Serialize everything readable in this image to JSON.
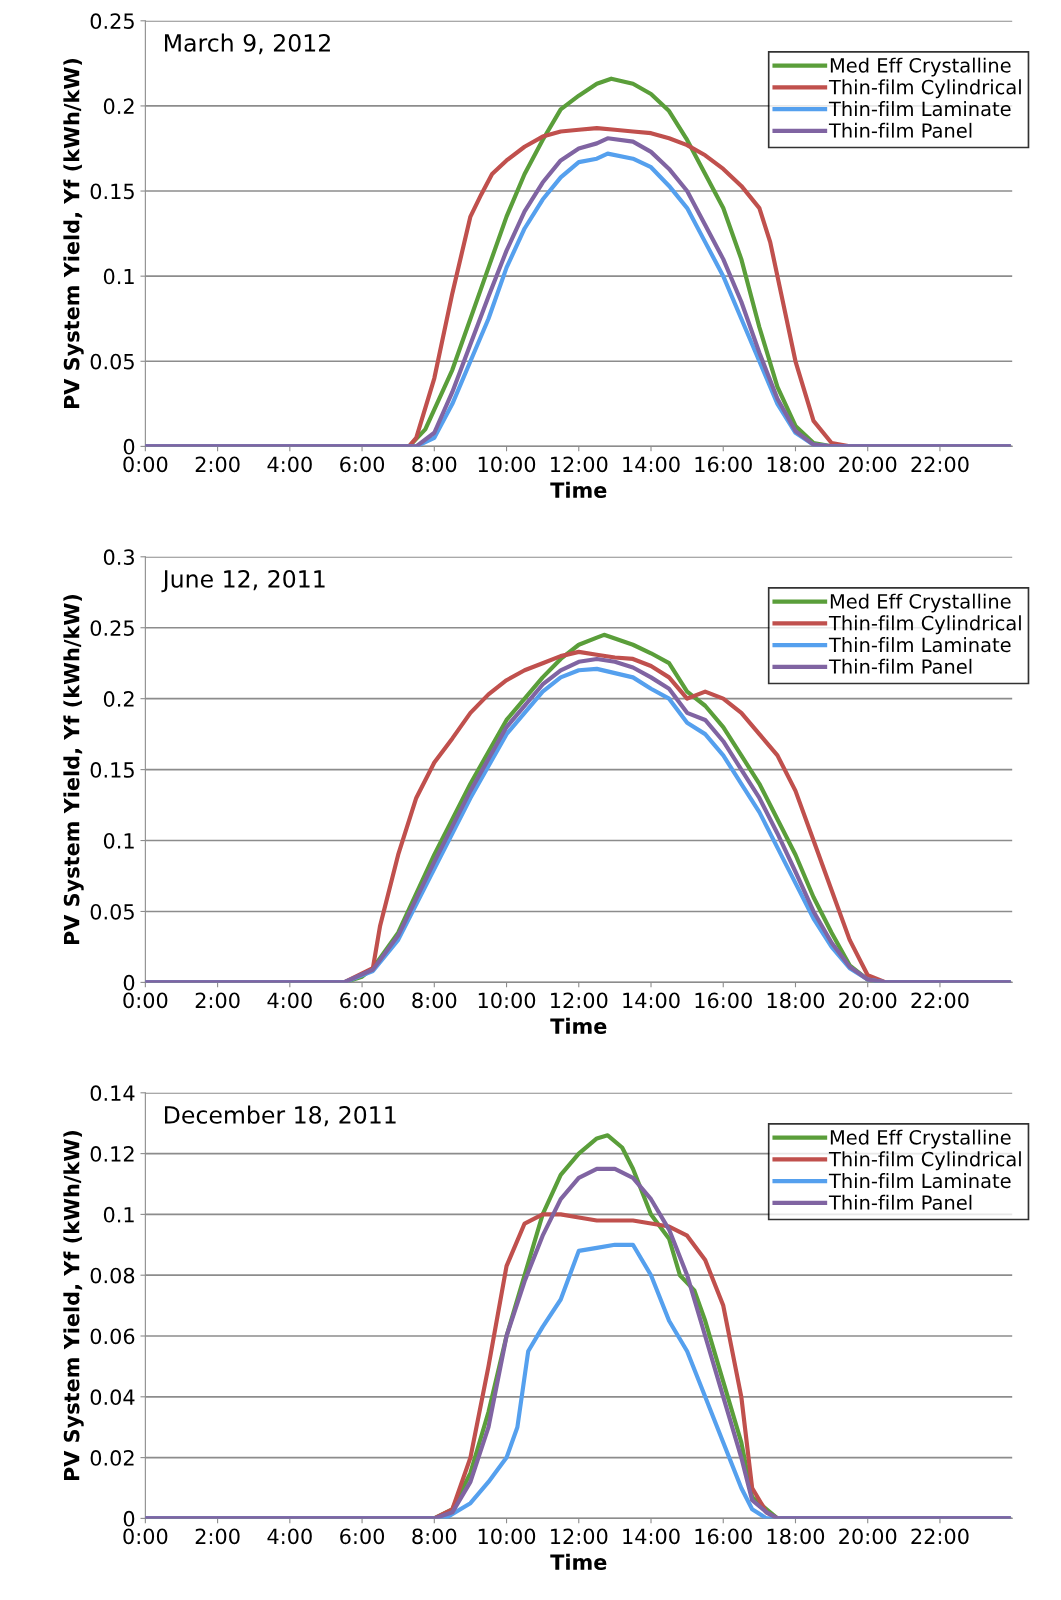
{
  "chart_data": [
    {
      "type": "line",
      "xlabel": "Time",
      "ylabel": "PV System Yield, Yf (kWh/kW)",
      "annotations": [
        "March 9, 2012"
      ],
      "xlim": [
        0,
        24
      ],
      "ylim": [
        0,
        0.25
      ],
      "grid": "y",
      "legend": "top right",
      "line_style": "solid",
      "marker": "none",
      "xticks": [
        {
          "value": 0,
          "label": "0:00"
        },
        {
          "value": 2,
          "label": "2:00"
        },
        {
          "value": 4,
          "label": "4:00"
        },
        {
          "value": 6,
          "label": "6:00"
        },
        {
          "value": 8,
          "label": "8:00"
        },
        {
          "value": 10,
          "label": "10:00"
        },
        {
          "value": 12,
          "label": "12:00"
        },
        {
          "value": 14,
          "label": "14:00"
        },
        {
          "value": 16,
          "label": "16:00"
        },
        {
          "value": 18,
          "label": "18:00"
        },
        {
          "value": 20,
          "label": "20:00"
        },
        {
          "value": 22,
          "label": "22:00"
        }
      ],
      "yticks": [
        0,
        0.05,
        0.1,
        0.15,
        0.2,
        0.25
      ],
      "series": [
        {
          "name": "Med Eff Crystalline",
          "color": "#5a9e3a",
          "x": [
            0,
            7.3,
            7.75,
            8.5,
            9,
            9.5,
            10,
            10.5,
            11,
            11.5,
            12,
            12.5,
            12.9,
            13.5,
            14,
            14.5,
            15,
            15.5,
            16,
            16.5,
            17,
            17.5,
            18,
            18.5,
            19,
            23.9
          ],
          "values": [
            0,
            0,
            0.01,
            0.045,
            0.075,
            0.105,
            0.135,
            0.16,
            0.18,
            0.198,
            0.206,
            0.213,
            0.216,
            0.213,
            0.207,
            0.197,
            0.18,
            0.16,
            0.14,
            0.11,
            0.07,
            0.035,
            0.012,
            0.002,
            0,
            0
          ]
        },
        {
          "name": "Thin-film Cylindrical",
          "color": "#c0504d",
          "x": [
            0,
            7.3,
            7.5,
            8,
            8.5,
            9,
            9.3,
            9.6,
            10,
            10.5,
            11,
            11.5,
            12,
            12.5,
            13,
            13.5,
            14,
            14.5,
            15,
            15.5,
            16,
            16.5,
            17,
            17.3,
            17.6,
            18,
            18.5,
            19,
            19.5,
            23.9
          ],
          "values": [
            0,
            0,
            0.005,
            0.04,
            0.09,
            0.135,
            0.148,
            0.16,
            0.168,
            0.176,
            0.182,
            0.185,
            0.186,
            0.187,
            0.186,
            0.185,
            0.184,
            0.181,
            0.177,
            0.171,
            0.163,
            0.153,
            0.14,
            0.12,
            0.09,
            0.05,
            0.015,
            0.002,
            0,
            0
          ]
        },
        {
          "name": "Thin-film Laminate",
          "color": "#55a0ee",
          "x": [
            0,
            7.5,
            8,
            8.5,
            9,
            9.5,
            10,
            10.5,
            11,
            11.5,
            12,
            12.5,
            12.8,
            13.5,
            14,
            14.5,
            15,
            15.5,
            16,
            16.5,
            17,
            17.5,
            18,
            18.5,
            19,
            23.9
          ],
          "values": [
            0,
            0,
            0.005,
            0.025,
            0.05,
            0.075,
            0.105,
            0.128,
            0.145,
            0.158,
            0.167,
            0.169,
            0.172,
            0.169,
            0.164,
            0.153,
            0.14,
            0.12,
            0.1,
            0.075,
            0.05,
            0.025,
            0.008,
            0.001,
            0,
            0
          ]
        },
        {
          "name": "Thin-film Panel",
          "color": "#8064a2",
          "x": [
            0,
            7.5,
            8,
            8.5,
            9,
            9.5,
            10,
            10.5,
            11,
            11.5,
            12,
            12.5,
            12.8,
            13.5,
            14,
            14.5,
            15,
            15.5,
            16,
            16.5,
            17,
            17.5,
            18,
            18.5,
            19,
            23.9
          ],
          "values": [
            0,
            0,
            0.008,
            0.032,
            0.06,
            0.088,
            0.115,
            0.138,
            0.155,
            0.168,
            0.175,
            0.178,
            0.181,
            0.179,
            0.173,
            0.163,
            0.15,
            0.13,
            0.11,
            0.085,
            0.055,
            0.028,
            0.009,
            0.001,
            0,
            0
          ]
        }
      ]
    },
    {
      "type": "line",
      "xlabel": "Time",
      "ylabel": "PV System Yield, Yf (kWh/kW)",
      "annotations": [
        "June 12, 2011"
      ],
      "xlim": [
        0,
        24
      ],
      "ylim": [
        0,
        0.3
      ],
      "grid": "y",
      "legend": "top right",
      "line_style": "solid",
      "marker": "none",
      "xticks": [
        {
          "value": 0,
          "label": "0:00"
        },
        {
          "value": 2,
          "label": "2:00"
        },
        {
          "value": 4,
          "label": "4:00"
        },
        {
          "value": 6,
          "label": "6:00"
        },
        {
          "value": 8,
          "label": "8:00"
        },
        {
          "value": 10,
          "label": "10:00"
        },
        {
          "value": 12,
          "label": "12:00"
        },
        {
          "value": 14,
          "label": "14:00"
        },
        {
          "value": 16,
          "label": "16:00"
        },
        {
          "value": 18,
          "label": "18:00"
        },
        {
          "value": 20,
          "label": "20:00"
        },
        {
          "value": 22,
          "label": "22:00"
        }
      ],
      "yticks": [
        0,
        0.05,
        0.1,
        0.15,
        0.2,
        0.25,
        0.3
      ],
      "series": [
        {
          "name": "Med Eff Crystalline",
          "color": "#5a9e3a",
          "x": [
            0,
            5.5,
            6,
            6.3,
            7,
            8,
            9,
            10,
            11,
            11.5,
            12,
            12.5,
            12.7,
            13.5,
            14,
            14.5,
            15,
            15.5,
            16,
            16.5,
            17,
            17.5,
            18,
            18.5,
            19,
            19.5,
            20,
            20.5,
            23.9
          ],
          "values": [
            0,
            0,
            0.004,
            0.01,
            0.035,
            0.09,
            0.14,
            0.185,
            0.215,
            0.228,
            0.238,
            0.243,
            0.245,
            0.238,
            0.232,
            0.225,
            0.205,
            0.195,
            0.18,
            0.16,
            0.14,
            0.115,
            0.09,
            0.06,
            0.035,
            0.012,
            0.002,
            0,
            0
          ]
        },
        {
          "name": "Thin-film Cylindrical",
          "color": "#c0504d",
          "x": [
            0,
            5.5,
            6.3,
            6.5,
            7,
            7.5,
            8,
            8.5,
            9,
            9.5,
            10,
            10.5,
            11,
            11.5,
            12,
            12.5,
            13,
            13.5,
            14,
            14.5,
            15,
            15.5,
            16,
            16.5,
            17,
            17.5,
            18,
            18.5,
            19,
            19.5,
            20,
            20.5,
            23.9
          ],
          "values": [
            0,
            0,
            0.01,
            0.04,
            0.09,
            0.13,
            0.155,
            0.172,
            0.19,
            0.203,
            0.213,
            0.22,
            0.225,
            0.23,
            0.233,
            0.231,
            0.229,
            0.228,
            0.223,
            0.215,
            0.2,
            0.205,
            0.2,
            0.19,
            0.175,
            0.16,
            0.135,
            0.1,
            0.065,
            0.03,
            0.005,
            0,
            0
          ]
        },
        {
          "name": "Thin-film Laminate",
          "color": "#55a0ee",
          "x": [
            0,
            5.5,
            6.3,
            7,
            8,
            9,
            10,
            11,
            11.5,
            12,
            12.5,
            13,
            13.5,
            14,
            14.5,
            15,
            15.5,
            16,
            16.5,
            17,
            17.5,
            18,
            18.5,
            19,
            19.5,
            20,
            20.5,
            23.9
          ],
          "values": [
            0,
            0,
            0.008,
            0.03,
            0.08,
            0.13,
            0.175,
            0.205,
            0.215,
            0.22,
            0.221,
            0.218,
            0.215,
            0.207,
            0.2,
            0.183,
            0.175,
            0.16,
            0.14,
            0.12,
            0.095,
            0.07,
            0.045,
            0.025,
            0.01,
            0.002,
            0,
            0
          ]
        },
        {
          "name": "Thin-film Panel",
          "color": "#8064a2",
          "x": [
            0,
            5.5,
            6.3,
            7,
            8,
            9,
            10,
            11,
            11.5,
            12,
            12.5,
            13,
            13.5,
            14,
            14.5,
            15,
            15.5,
            16,
            16.5,
            17,
            17.5,
            18,
            18.5,
            19,
            19.5,
            20,
            20.5,
            23.9
          ],
          "values": [
            0,
            0,
            0.009,
            0.033,
            0.085,
            0.135,
            0.18,
            0.21,
            0.22,
            0.226,
            0.228,
            0.226,
            0.222,
            0.215,
            0.207,
            0.19,
            0.185,
            0.17,
            0.15,
            0.13,
            0.105,
            0.078,
            0.05,
            0.028,
            0.011,
            0.002,
            0,
            0
          ]
        }
      ]
    },
    {
      "type": "line",
      "xlabel": "Time",
      "ylabel": "PV System Yield, Yf (kWh/kW)",
      "annotations": [
        "December 18, 2011"
      ],
      "xlim": [
        0,
        24
      ],
      "ylim": [
        0,
        0.14
      ],
      "grid": "y",
      "legend": "top right",
      "line_style": "solid",
      "marker": "none",
      "xticks": [
        {
          "value": 0,
          "label": "0:00"
        },
        {
          "value": 2,
          "label": "2:00"
        },
        {
          "value": 4,
          "label": "4:00"
        },
        {
          "value": 6,
          "label": "6:00"
        },
        {
          "value": 8,
          "label": "8:00"
        },
        {
          "value": 10,
          "label": "10:00"
        },
        {
          "value": 12,
          "label": "12:00"
        },
        {
          "value": 14,
          "label": "14:00"
        },
        {
          "value": 16,
          "label": "16:00"
        },
        {
          "value": 18,
          "label": "18:00"
        },
        {
          "value": 20,
          "label": "20:00"
        },
        {
          "value": 22,
          "label": "22:00"
        }
      ],
      "yticks": [
        0,
        0.02,
        0.04,
        0.06,
        0.08,
        0.1,
        0.12,
        0.14
      ],
      "series": [
        {
          "name": "Med Eff Crystalline",
          "color": "#5a9e3a",
          "x": [
            0,
            8,
            8.5,
            9,
            9.5,
            10,
            10.5,
            11,
            11.5,
            12,
            12.5,
            12.8,
            13.2,
            13.5,
            14,
            14.5,
            14.8,
            15.2,
            15.5,
            16,
            16.5,
            16.8,
            17.2,
            17.5,
            23.9
          ],
          "values": [
            0,
            0,
            0.003,
            0.015,
            0.035,
            0.06,
            0.08,
            0.1,
            0.113,
            0.12,
            0.125,
            0.126,
            0.122,
            0.115,
            0.1,
            0.092,
            0.08,
            0.075,
            0.065,
            0.045,
            0.025,
            0.007,
            0.003,
            0,
            0
          ]
        },
        {
          "name": "Thin-film Cylindrical",
          "color": "#c0504d",
          "x": [
            0,
            8,
            8.5,
            9,
            9.5,
            10,
            10.5,
            11,
            11.5,
            12,
            12.5,
            13,
            13.5,
            14,
            14.5,
            15,
            15.5,
            16,
            16.5,
            16.8,
            17.2,
            17.5,
            23.9
          ],
          "values": [
            0,
            0,
            0.003,
            0.02,
            0.05,
            0.083,
            0.097,
            0.1,
            0.1,
            0.099,
            0.098,
            0.098,
            0.098,
            0.097,
            0.096,
            0.093,
            0.085,
            0.07,
            0.04,
            0.01,
            0.002,
            0,
            0
          ]
        },
        {
          "name": "Thin-film Laminate",
          "color": "#55a0ee",
          "x": [
            0,
            8.3,
            9,
            9.5,
            10,
            10.3,
            10.6,
            11,
            11.5,
            12,
            12.5,
            13,
            13.5,
            14,
            14.5,
            15,
            15.5,
            16,
            16.5,
            16.8,
            17.2,
            23.9
          ],
          "values": [
            0,
            0,
            0.005,
            0.012,
            0.02,
            0.03,
            0.055,
            0.063,
            0.072,
            0.088,
            0.089,
            0.09,
            0.09,
            0.08,
            0.065,
            0.055,
            0.04,
            0.025,
            0.01,
            0.003,
            0,
            0
          ]
        },
        {
          "name": "Thin-film Panel",
          "color": "#8064a2",
          "x": [
            0,
            8,
            8.5,
            9,
            9.5,
            10,
            10.5,
            11,
            11.5,
            12,
            12.5,
            13,
            13.5,
            14,
            14.5,
            15,
            15.5,
            16,
            16.5,
            16.8,
            17.2,
            17.5,
            23.9
          ],
          "values": [
            0,
            0,
            0.002,
            0.012,
            0.03,
            0.06,
            0.078,
            0.093,
            0.105,
            0.112,
            0.115,
            0.115,
            0.112,
            0.105,
            0.095,
            0.08,
            0.06,
            0.04,
            0.02,
            0.006,
            0.002,
            0,
            0
          ]
        }
      ]
    }
  ]
}
